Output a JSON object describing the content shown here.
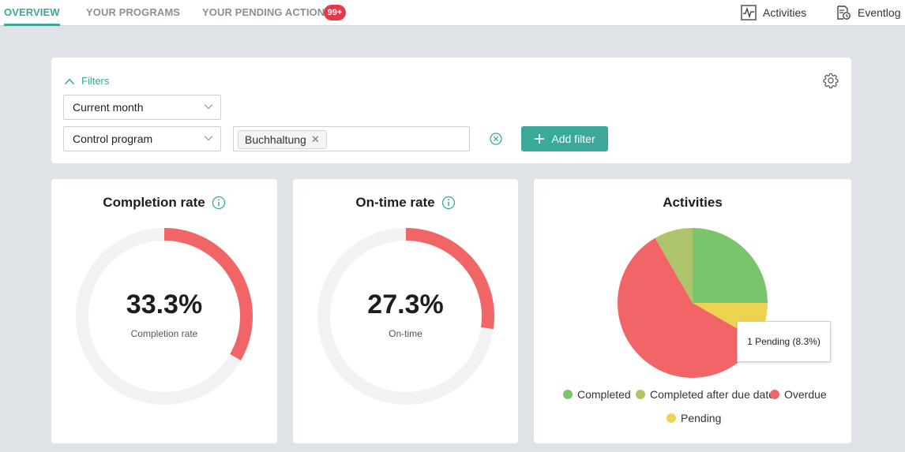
{
  "nav": {
    "tabs": [
      {
        "label": "OVERVIEW",
        "active": true
      },
      {
        "label": "YOUR PROGRAMS",
        "active": false
      },
      {
        "label": "YOUR PENDING ACTIONS",
        "active": false
      }
    ],
    "pending_badge": "99+",
    "links": {
      "activities": "Activities",
      "eventlog": "Eventlog"
    }
  },
  "filters": {
    "toggle_label": "Filters",
    "period_select": "Current month",
    "field_select": "Control program",
    "tags": [
      "Buchhaltung"
    ],
    "add_filter_label": "Add filter"
  },
  "completion": {
    "title": "Completion rate",
    "value_text": "33.3%",
    "label": "Completion rate",
    "fraction": 0.333
  },
  "ontime": {
    "title": "On-time rate",
    "value_text": "27.3%",
    "label": "On-time",
    "fraction": 0.273
  },
  "activities": {
    "title": "Activities",
    "tooltip": "1 Pending (8.3%)"
  },
  "chart_data": {
    "type": "pie",
    "title": "Activities",
    "categories": [
      "Completed",
      "Pending",
      "Overdue",
      "Completed after due date"
    ],
    "values": [
      3,
      1,
      7,
      1
    ],
    "colors": [
      "#7ac46b",
      "#eed251",
      "#f26566",
      "#aec46b"
    ],
    "legend": [
      "Completed",
      "Completed after due date",
      "Overdue",
      "Pending"
    ],
    "legend_colors": [
      "#7ac46b",
      "#aec46b",
      "#f26566",
      "#eed251"
    ]
  },
  "colors": {
    "accent": "#3aa99a",
    "donut_fill": "#f26566",
    "donut_track": "#f1f2f4",
    "badge": "#e5394a"
  },
  "icons": [
    "activities-icon",
    "eventlog-icon",
    "chevron-up-icon",
    "gear-icon",
    "chevron-down-icon",
    "close-icon",
    "clear-circle-icon",
    "plus-icon",
    "info-icon"
  ]
}
